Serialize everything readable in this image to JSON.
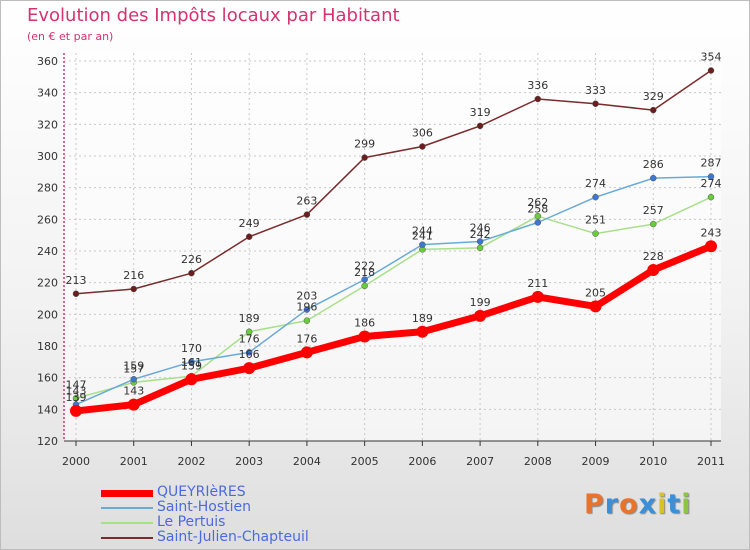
{
  "title": "Evolution des Impôts locaux par Habitant",
  "subtitle": "(en € et par an)",
  "brand": {
    "text": "Proxiti",
    "letter_colors": [
      "#e8742c",
      "#3a8fd8",
      "#e8742c",
      "#3a8fd8",
      "#d8c22a",
      "#3a8fd8",
      "#8cc63e"
    ]
  },
  "chart_data": {
    "type": "line",
    "title": "Evolution des Impôts locaux par Habitant",
    "subtitle": "(en € et par an)",
    "xlabel": "",
    "ylabel": "",
    "x": [
      "2000",
      "2001",
      "2002",
      "2003",
      "2004",
      "2005",
      "2006",
      "2007",
      "2008",
      "2009",
      "2010",
      "2011"
    ],
    "ylim": [
      120,
      360
    ],
    "yticks": [
      120,
      140,
      160,
      180,
      200,
      220,
      240,
      260,
      280,
      300,
      320,
      340,
      360
    ],
    "grid": true,
    "legend_position": "bottom-left",
    "series": [
      {
        "name": "QUEYRIèRES",
        "color": "#ff0000",
        "marker": "#ff0000",
        "values": [
          139,
          143,
          159,
          166,
          176,
          186,
          189,
          199,
          211,
          205,
          228,
          243
        ]
      },
      {
        "name": "Saint-Hostien",
        "color": "#6aaad8",
        "marker": "#3d78d0",
        "values": [
          143,
          159,
          170,
          176,
          203,
          222,
          244,
          246,
          258,
          274,
          286,
          287
        ]
      },
      {
        "name": "Le Pertuis",
        "color": "#a8e08a",
        "marker": "#6acc3a",
        "values": [
          147,
          157,
          161,
          189,
          196,
          218,
          241,
          242,
          262,
          251,
          257,
          274
        ]
      },
      {
        "name": "Saint-Julien-Chapteuil",
        "color": "#7a2b2b",
        "marker": "#6a1e1e",
        "values": [
          213,
          216,
          226,
          249,
          263,
          299,
          306,
          319,
          336,
          333,
          329,
          354
        ]
      }
    ]
  }
}
